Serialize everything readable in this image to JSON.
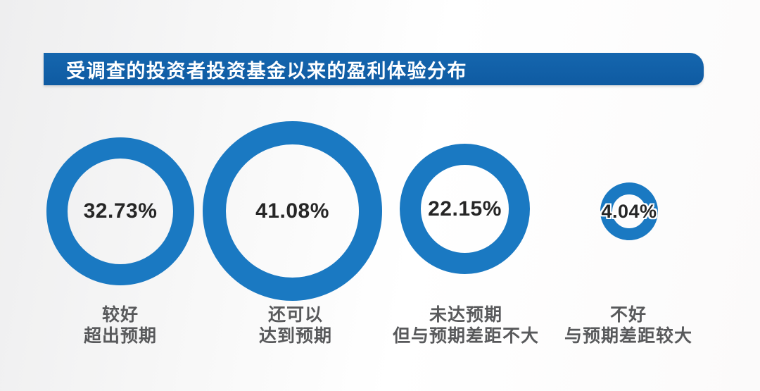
{
  "colors": {
    "banner_blue": "#1566ae",
    "banner_blue_dark": "#0f5ba2",
    "ring_blue": "#1a79c2",
    "percent_text": "#262626",
    "label_gray": "#58595b"
  },
  "chart_data": {
    "type": "donut",
    "title": "受调查的投资者投资基金以来的盈利体验分布",
    "unit": "%",
    "legend_position": "label below each ring, ring size scales with value",
    "items": [
      {
        "value": 32.73,
        "percent_label": "32.73%",
        "label_line1": "较好",
        "label_line2": "超出预期"
      },
      {
        "value": 41.08,
        "percent_label": "41.08%",
        "label_line1": "还可以",
        "label_line2": "达到预期"
      },
      {
        "value": 22.15,
        "percent_label": "22.15%",
        "label_line1": "未达预期",
        "label_line2": "但与预期差距不大"
      },
      {
        "value": 4.04,
        "percent_label": "4.04%",
        "label_line1": "不好",
        "label_line2": "与预期差距较大"
      }
    ]
  }
}
